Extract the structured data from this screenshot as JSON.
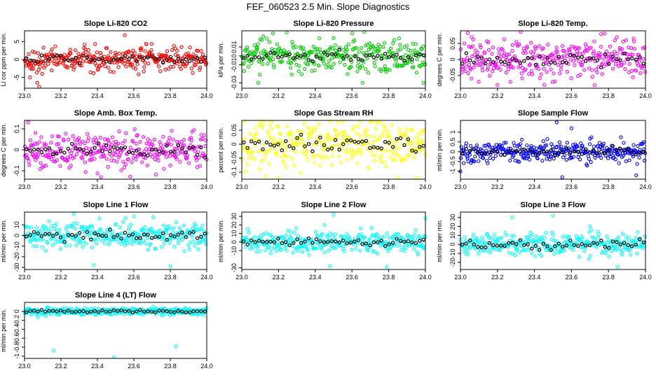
{
  "figure_title": "FEF_060523  2.5 Min. Slope Diagnostics",
  "colors": {
    "cycle_points": "#000000"
  },
  "chart_data": [
    {
      "type": "scatter",
      "title": "Slope Li-820 CO2",
      "ylabel": "Li cor ppm per min.",
      "color": "#ff0000",
      "xlim": [
        23.0,
        24.0
      ],
      "ylim": [
        -8,
        8
      ],
      "xticks": [
        "23.0",
        "23.2",
        "23.4",
        "23.6",
        "23.8",
        "24.0"
      ],
      "yticks": [
        -5,
        0,
        5
      ],
      "series_spread": 1.6,
      "outliers": [
        [
          23.55,
          6.8
        ],
        [
          23.07,
          -6.5
        ],
        [
          23.08,
          -7.6
        ],
        [
          23.38,
          -3.8
        ],
        [
          23.03,
          -5.0
        ]
      ]
    },
    {
      "type": "scatter",
      "title": "Slope Li-820 Pressure",
      "ylabel": "kPa per min.",
      "color": "#00cc00",
      "xlim": [
        23.0,
        24.0
      ],
      "ylim": [
        -0.036,
        0.028
      ],
      "xticks": [
        "23.0",
        "23.2",
        "23.4",
        "23.6",
        "23.8",
        "24.0"
      ],
      "yticks": [
        -0.03,
        -0.01,
        0.0,
        0.01
      ],
      "series_spread": 0.009,
      "outliers": [
        [
          23.17,
          0.025
        ],
        [
          23.09,
          -0.03
        ],
        [
          23.99,
          -0.03
        ],
        [
          23.5,
          0.02
        ]
      ]
    },
    {
      "type": "scatter",
      "title": "Slope Li-820 Temp.",
      "ylabel": "degrees C per min.",
      "color": "#ff00ff",
      "xlim": [
        23.0,
        24.0
      ],
      "ylim": [
        -0.09,
        0.09
      ],
      "xticks": [
        "23.0",
        "23.2",
        "23.4",
        "23.6",
        "23.8",
        "24.0"
      ],
      "yticks": [
        -0.05,
        0.0,
        0.05
      ],
      "series_spread": 0.032,
      "outliers": [
        [
          23.06,
          0.07
        ],
        [
          23.2,
          -0.08
        ],
        [
          23.76,
          0.08
        ],
        [
          23.27,
          -0.07
        ]
      ]
    },
    {
      "type": "scatter",
      "title": "Slope Amb. Box Temp.",
      "ylabel": "degrees C per min.",
      "color": "#ff00ff",
      "xlim": [
        23.0,
        24.0
      ],
      "ylim": [
        -0.14,
        0.14
      ],
      "xticks": [
        "23.0",
        "23.2",
        "23.4",
        "23.6",
        "23.8",
        "24.0"
      ],
      "yticks": [
        -0.1,
        0.0,
        0.1
      ],
      "series_spread": 0.04,
      "outliers": [
        [
          23.02,
          0.13
        ],
        [
          23.42,
          -0.13
        ],
        [
          23.06,
          0.08
        ],
        [
          23.62,
          0.07
        ]
      ]
    },
    {
      "type": "scatter",
      "title": "Slope Gas Stream RH",
      "ylabel": "percent per min.",
      "color": "#ffff00",
      "xlim": [
        23.0,
        24.0
      ],
      "ylim": [
        -0.125,
        0.085
      ],
      "xticks": [
        "23.0",
        "23.2",
        "23.4",
        "23.6",
        "23.8",
        "24.0"
      ],
      "yticks": [
        -0.1,
        -0.05,
        0.0,
        0.05
      ],
      "series_spread": 0.045,
      "outliers": [
        [
          23.2,
          -0.12
        ],
        [
          23.55,
          0.08
        ],
        [
          23.75,
          0.08
        ],
        [
          23.85,
          -0.12
        ]
      ]
    },
    {
      "type": "scatter",
      "title": "Slope Sample Flow",
      "ylabel": "ml/min per min.",
      "color": "#0000ff",
      "xlim": [
        23.0,
        24.0
      ],
      "ylim": [
        -1.4,
        1.6
      ],
      "xticks": [
        "23.0",
        "23.2",
        "23.4",
        "23.6",
        "23.8",
        "24.0"
      ],
      "yticks": [
        -1.0,
        -0.5,
        0.0,
        0.5,
        1.0
      ],
      "series_spread": 0.25,
      "outliers": [
        [
          23.52,
          1.5
        ],
        [
          23.6,
          1.2
        ],
        [
          23.95,
          -1.2
        ],
        [
          23.0,
          -1.0
        ],
        [
          23.55,
          -1.3
        ]
      ]
    },
    {
      "type": "scatter",
      "title": "Slope Line 1 Flow",
      "ylabel": "ml/min per min.",
      "color": "#00ffff",
      "xlim": [
        23.0,
        24.0
      ],
      "ylim": [
        -32,
        22
      ],
      "xticks": [
        "23.0",
        "23.2",
        "23.4",
        "23.6",
        "23.8",
        "24.0"
      ],
      "yticks": [
        -30,
        -20,
        -10,
        0,
        10
      ],
      "series_spread": 6,
      "outliers": [
        [
          23.38,
          -28
        ],
        [
          23.8,
          -29
        ],
        [
          23.27,
          20
        ],
        [
          23.6,
          18
        ],
        [
          23.05,
          -10
        ]
      ]
    },
    {
      "type": "scatter",
      "title": "Slope Line 2 Flow",
      "ylabel": "ml/min per min.",
      "color": "#00ffff",
      "xlim": [
        23.0,
        24.0
      ],
      "ylim": [
        -32,
        35
      ],
      "xticks": [
        "23.0",
        "23.2",
        "23.4",
        "23.6",
        "23.8",
        "24.0"
      ],
      "yticks": [
        -30,
        -10,
        0,
        10,
        20,
        30
      ],
      "series_spread": 6,
      "outliers": [
        [
          23.48,
          -28
        ],
        [
          23.5,
          32
        ],
        [
          23.79,
          -29
        ],
        [
          24.0,
          28
        ],
        [
          23.45,
          20
        ]
      ]
    },
    {
      "type": "scatter",
      "title": "Slope Line 3 Flow",
      "ylabel": "ml/min per min.",
      "color": "#00ffff",
      "xlim": [
        23.0,
        24.0
      ],
      "ylim": [
        -28,
        36
      ],
      "xticks": [
        "23.0",
        "23.2",
        "23.4",
        "23.6",
        "23.8",
        "24.0"
      ],
      "yticks": [
        -20,
        -10,
        0,
        10,
        20,
        30
      ],
      "series_spread": 6,
      "outliers": [
        [
          23.5,
          32
        ],
        [
          23.85,
          -25
        ],
        [
          23.28,
          30
        ],
        [
          23.7,
          20
        ]
      ]
    },
    {
      "type": "scatter",
      "title": "Slope Line 4 (LT) Flow",
      "ylabel": "ml/min per min.",
      "color": "#00ffff",
      "xlim": [
        23.0,
        24.0
      ],
      "ylim": [
        -1.05,
        0.2
      ],
      "xticks": [
        "23.0",
        "23.2",
        "23.4",
        "23.6",
        "23.8",
        "24.0"
      ],
      "yticks": [
        -1.0,
        -0.8,
        -0.6,
        -0.4,
        -0.2,
        0.0
      ],
      "series_spread": 0.04,
      "outliers": [
        [
          23.16,
          -0.88
        ],
        [
          23.49,
          -1.02
        ],
        [
          23.83,
          -0.78
        ]
      ]
    }
  ]
}
